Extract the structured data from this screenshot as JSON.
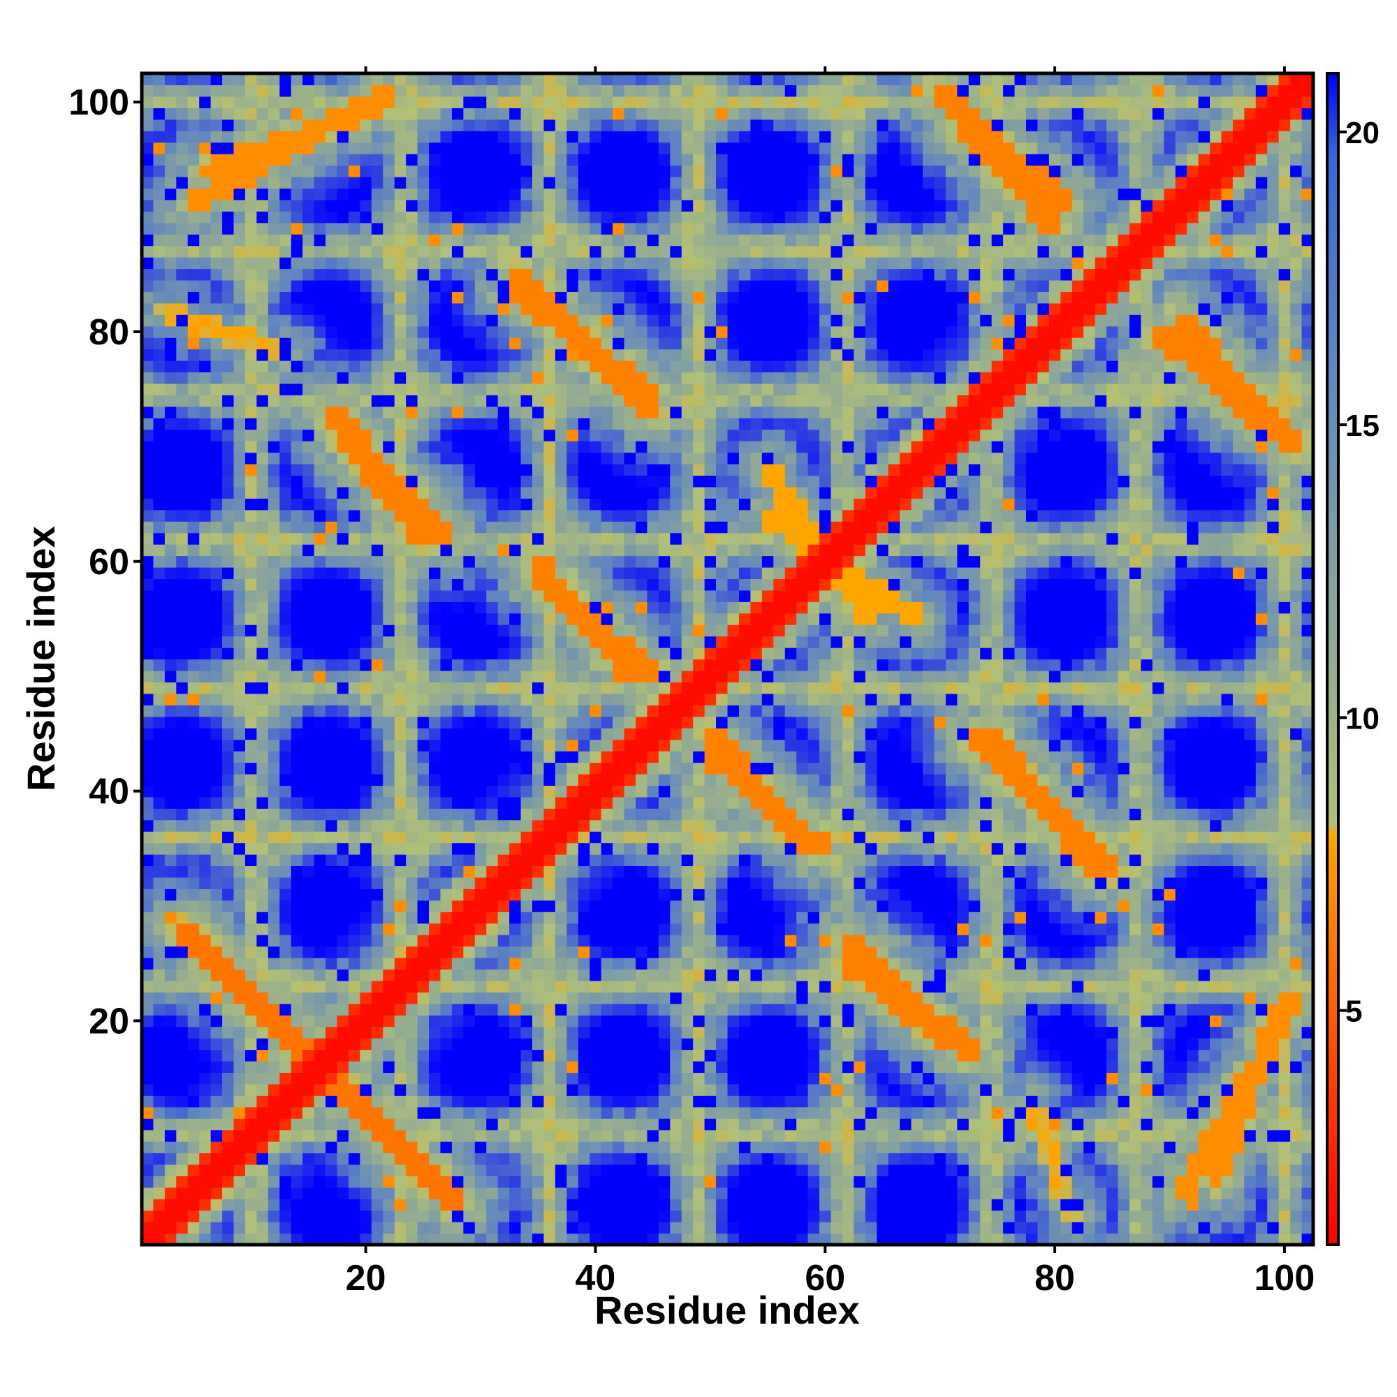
{
  "chart_data": {
    "type": "heatmap",
    "title": "",
    "xlabel": "Residue index",
    "ylabel": "Residue index",
    "n_residues": 102,
    "xlim": [
      1,
      102
    ],
    "ylim": [
      1,
      102
    ],
    "x_ticks": [
      20,
      40,
      60,
      80,
      100
    ],
    "x_tick_labels": [
      "20",
      "40",
      "60",
      "80",
      "100"
    ],
    "y_ticks": [
      20,
      40,
      60,
      80,
      100
    ],
    "y_tick_labels": [
      "20",
      "40",
      "60",
      "80",
      "100"
    ],
    "colorbar": {
      "min": 1,
      "max": 21,
      "ticks": [
        5,
        10,
        15,
        20
      ],
      "tick_labels": [
        "5",
        "10",
        "15",
        "20"
      ],
      "colors": [
        "#ff0000",
        "#ff4500",
        "#ffa500",
        "#b0c078",
        "#5f86c0",
        "#0000ff"
      ],
      "stops": [
        1,
        4,
        8,
        11,
        16,
        20
      ]
    },
    "value_meaning": "residue-residue distance (cell colour: low = red/orange, high = blue)",
    "main_diagonal": {
      "from": [
        1,
        1
      ],
      "to": [
        102,
        102
      ],
      "value": 1.5
    },
    "contact_bands": [
      {
        "from": [
          4,
          28
        ],
        "to": [
          28,
          4
        ],
        "value": 6
      },
      {
        "from": [
          17,
          73
        ],
        "to": [
          27,
          62
        ],
        "value": 6.5
      },
      {
        "from": [
          6,
          94
        ],
        "to": [
          22,
          100
        ],
        "value": 7
      },
      {
        "from": [
          35,
          60
        ],
        "to": [
          43,
          50
        ],
        "value": 6.5
      },
      {
        "from": [
          33,
          85
        ],
        "to": [
          45,
          74
        ],
        "value": 6.5
      },
      {
        "from": [
          50,
          45
        ],
        "to": [
          59,
          35
        ],
        "value": 6.5
      },
      {
        "from": [
          62,
          25
        ],
        "to": [
          71,
          18
        ],
        "value": 6.5
      },
      {
        "from": [
          72,
          98
        ],
        "to": [
          80,
          89
        ],
        "value": 6.5
      },
      {
        "from": [
          73,
          45
        ],
        "to": [
          84,
          33
        ],
        "value": 6.5
      },
      {
        "from": [
          91,
          81
        ],
        "to": [
          101,
          70
        ],
        "value": 6.5
      },
      {
        "from": [
          91,
          5
        ],
        "to": [
          101,
          22
        ],
        "value": 7
      },
      {
        "from": [
          55,
          64
        ],
        "to": [
          68,
          55
        ],
        "value": 8
      },
      {
        "from": [
          2,
          82
        ],
        "to": [
          13,
          78
        ],
        "value": 9
      }
    ],
    "background_value": 21,
    "grid": false,
    "legend": "colorbar-right"
  }
}
